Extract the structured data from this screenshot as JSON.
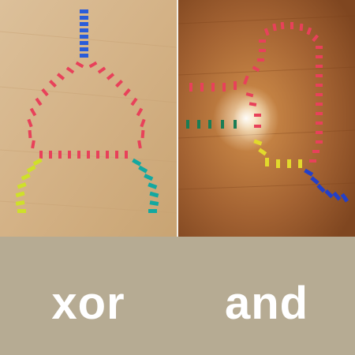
{
  "panels": [
    {
      "label": "xor",
      "colors": {
        "input": "#2a5cd9",
        "body": "#e8415a",
        "out_left": "#cfe02a",
        "out_right": "#13a8a0",
        "wood": "#d7b489"
      }
    },
    {
      "label": "and",
      "colors": {
        "input_a": "#e8415a",
        "input_b": "#1a7d55",
        "out_yellow": "#e2d92c",
        "out_blue": "#2340c9",
        "wood": "#9a5a2a"
      }
    }
  ]
}
